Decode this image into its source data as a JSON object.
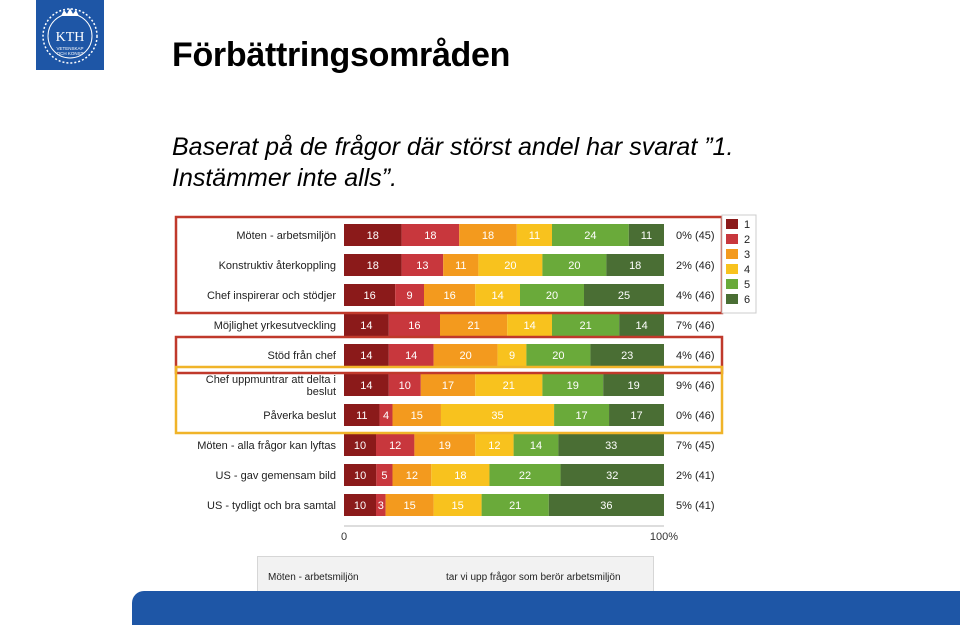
{
  "header": {
    "title": "Förbättringsområden",
    "subtitle_line1": "Baserat på de frågor där störst andel har svarat ”1.",
    "subtitle_line2": "Instämmer inte alls”."
  },
  "logo": {
    "text": "KTH",
    "subtext_line1": "VETENSKAP",
    "subtext_line2": "OCH KONST"
  },
  "colors": {
    "brand_blue": "#1e56a6",
    "highlight_red": "#c0392b",
    "highlight_yellow": "#f0b429",
    "scale": [
      "#8b1a1a",
      "#c8373d",
      "#f39a1e",
      "#f8c21e",
      "#6aaa3a",
      "#4a6e34"
    ]
  },
  "chart_data": {
    "type": "bar",
    "orientation": "horizontal",
    "stacked": "100%",
    "legend": {
      "placement": "right",
      "labels": [
        "1",
        "2",
        "3",
        "4",
        "5",
        "6"
      ]
    },
    "xlim": [
      0,
      100
    ],
    "x_ticks": [
      "0",
      "100%"
    ],
    "rows": [
      {
        "label": "Möten  -  arbetsmiljön",
        "values": [
          18,
          18,
          18,
          11,
          24,
          11
        ],
        "stat": "0% (45)",
        "highlight": "red"
      },
      {
        "label": "Konstruktiv  återkoppling",
        "values": [
          18,
          13,
          11,
          20,
          20,
          18
        ],
        "stat": "2% (46)",
        "highlight": "red"
      },
      {
        "label": "Chef inspirerar och stödjer",
        "values": [
          16,
          9,
          16,
          14,
          20,
          25
        ],
        "stat": "4% (46)",
        "highlight": "red"
      },
      {
        "label": "Möjlighet  yrkesutveckling",
        "values": [
          14,
          16,
          21,
          14,
          21,
          14
        ],
        "stat": "7% (46)",
        "highlight": ""
      },
      {
        "label": "Stöd  från  chef",
        "values": [
          14,
          14,
          20,
          9,
          20,
          23
        ],
        "stat": "4% (46)",
        "highlight": "red"
      },
      {
        "label": "Chef uppmuntrar att delta i|beslut",
        "values": [
          14,
          10,
          17,
          21,
          19,
          19
        ],
        "stat": "9% (46)",
        "highlight": "yellow"
      },
      {
        "label": "Påverka  beslut",
        "values": [
          11,
          4,
          15,
          35,
          17,
          17
        ],
        "stat": "0% (46)",
        "highlight": "yellow"
      },
      {
        "label": "Möten - alla frågor kan lyftas",
        "values": [
          10,
          12,
          19,
          12,
          14,
          33
        ],
        "stat": "7% (45)",
        "highlight": ""
      },
      {
        "label": "US  -  gav gemensam bild",
        "values": [
          10,
          5,
          12,
          18,
          22,
          32
        ],
        "stat": "2% (41)",
        "highlight": ""
      },
      {
        "label": "US  -  tydligt och bra samtal",
        "values": [
          10,
          3,
          15,
          15,
          21,
          36
        ],
        "stat": "5% (41)",
        "highlight": ""
      }
    ]
  },
  "screenshot_strip": {
    "left_text": "Möten - arbetsmiljön",
    "right_text": "tar vi upp frågor som berör arbetsmiljön"
  }
}
